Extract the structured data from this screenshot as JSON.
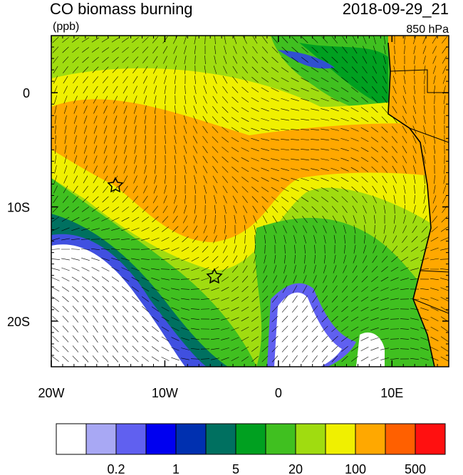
{
  "header": {
    "title": "CO biomass burning",
    "units": "(ppb)",
    "time": "2018-09-29_21",
    "level": "850 hPa"
  },
  "map": {
    "xlim": [
      -20,
      15
    ],
    "ylim": [
      -24,
      5
    ],
    "xticks": [
      {
        "value": -20,
        "label": "20W"
      },
      {
        "value": -10,
        "label": "10W"
      },
      0,
      {
        "value": 10,
        "label": "10E"
      }
    ],
    "yticks": [
      0,
      {
        "value": -10,
        "label": "10S"
      },
      {
        "value": -20,
        "label": "20S"
      }
    ]
  },
  "colorbar": {
    "colors": [
      "#ffffff",
      "#a8a8f4",
      "#6060f0",
      "#0000f0",
      "#0030b0",
      "#007060",
      "#00a020",
      "#40c020",
      "#a0dc10",
      "#f0f000",
      "#ffa800",
      "#ff6000",
      "#ff1010"
    ],
    "labels": [
      0.2,
      1,
      5,
      20,
      100,
      500
    ]
  }
}
